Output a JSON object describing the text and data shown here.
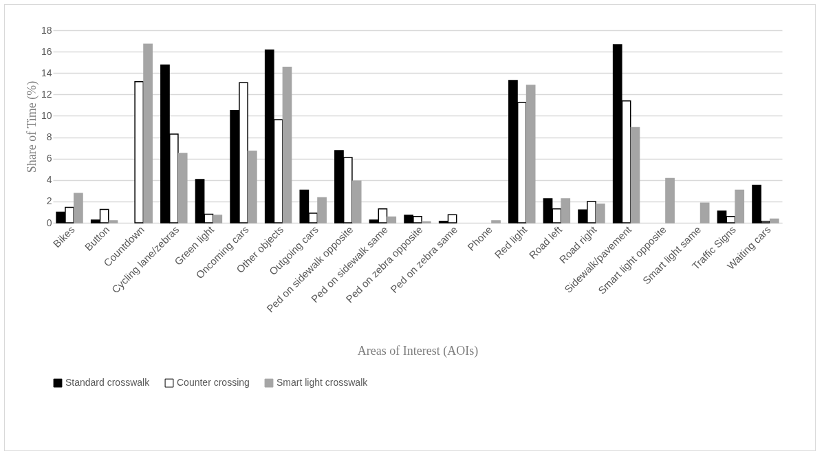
{
  "chart_data": {
    "type": "bar",
    "xlabel": "Areas of Interest (AOIs)",
    "ylabel": "Share of Time (%)",
    "categories": [
      "Bikes",
      "Button",
      "Countdown",
      "Cycling lane/zebras",
      "Green light",
      "Oncoming cars",
      "Other objects",
      "Outgoing cars",
      "Ped on sidewalk opposite",
      "Ped on sidewalk same",
      "Ped on zebra opposite",
      "Ped on zebra same",
      "Phone",
      "Red light",
      "Road left",
      "Road right",
      "Sidewalk/pavement",
      "Smart light opposite",
      "Smart light same",
      "Traffic Signs",
      "Waiting cars"
    ],
    "series": [
      {
        "name": "Standard crosswalk",
        "color": "#000000",
        "values": [
          1.0,
          0.25,
          null,
          14.75,
          4.05,
          10.5,
          16.15,
          3.05,
          6.75,
          0.25,
          0.7,
          0.15,
          null,
          13.3,
          2.25,
          1.2,
          16.65,
          null,
          null,
          1.1,
          3.5
        ]
      },
      {
        "name": "Counter crossing",
        "color": "#ffffff",
        "values": [
          1.45,
          1.25,
          13.2,
          8.3,
          0.8,
          13.1,
          9.65,
          0.9,
          6.1,
          1.3,
          0.6,
          0.75,
          null,
          11.25,
          1.3,
          2.0,
          11.4,
          null,
          null,
          0.6,
          0.15
        ]
      },
      {
        "name": "Smart light crosswalk",
        "color": "#a5a5a5",
        "values": [
          2.75,
          0.2,
          16.7,
          6.5,
          0.7,
          6.7,
          14.55,
          2.35,
          3.9,
          0.55,
          0.1,
          null,
          0.2,
          12.85,
          2.25,
          1.75,
          8.9,
          4.15,
          1.85,
          3.05,
          0.35
        ]
      }
    ],
    "ylim": [
      0,
      18
    ],
    "yticks": [
      0,
      2,
      4,
      6,
      8,
      10,
      12,
      14,
      16,
      18
    ],
    "grid": "y",
    "legend": "bottom"
  }
}
